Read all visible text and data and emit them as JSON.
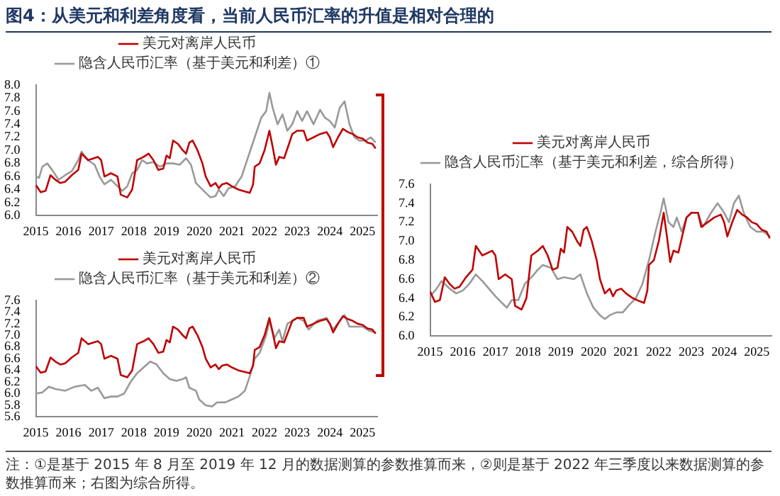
{
  "chart_data": [
    {
      "type": "line",
      "title": "图4：从美元和利差角度看，当前人民币汇率的升值是相对合理的",
      "marker": "none",
      "legend": "top",
      "xlim": [
        2015,
        2025.45
      ],
      "xticks": [
        2015,
        2016,
        2017,
        2018,
        2019,
        2020,
        2021,
        2022,
        2023,
        2024,
        2025
      ],
      "ylim": [
        6,
        8
      ],
      "yticks": [
        {
          "value": 6,
          "label": "6.0"
        },
        {
          "value": 6.2,
          "label": "6.2"
        },
        {
          "value": 6.4,
          "label": "6.4"
        },
        {
          "value": 6.6,
          "label": "6.6"
        },
        {
          "value": 6.8,
          "label": "6.8"
        },
        {
          "value": 7,
          "label": "7.0"
        },
        {
          "value": 7.2,
          "label": "7.2"
        },
        {
          "value": 7.4,
          "label": "7.4"
        },
        {
          "value": 7.6,
          "label": "7.6"
        },
        {
          "value": 7.8,
          "label": "7.8"
        },
        {
          "value": 8,
          "label": "8.0"
        }
      ],
      "series": [
        {
          "name": "美元对离岸人民币",
          "color": "#c00000",
          "x": [
            2015,
            2015.15,
            2015.3,
            2015.45,
            2015.6,
            2015.75,
            2015.9,
            2016.1,
            2016.3,
            2016.4,
            2016.6,
            2016.9,
            2017,
            2017.1,
            2017.3,
            2017.5,
            2017.6,
            2017.8,
            2017.95,
            2018.1,
            2018.3,
            2018.45,
            2018.6,
            2018.75,
            2018.9,
            2019,
            2019.1,
            2019.2,
            2019.35,
            2019.5,
            2019.6,
            2019.7,
            2019.8,
            2019.95,
            2020.1,
            2020.2,
            2020.35,
            2020.5,
            2020.6,
            2020.7,
            2020.85,
            2021,
            2021.2,
            2021.4,
            2021.55,
            2021.65,
            2021.7,
            2021.85,
            2022,
            2022.1,
            2022.15,
            2022.25,
            2022.35,
            2022.45,
            2022.6,
            2022.75,
            2022.85,
            2023,
            2023.2,
            2023.3,
            2023.5,
            2023.7,
            2023.9,
            2024,
            2024.1,
            2024.25,
            2024.4,
            2024.55,
            2024.7,
            2024.85,
            2025,
            2025.15,
            2025.3,
            2025.4
          ],
          "values": [
            6.47,
            6.36,
            6.38,
            6.62,
            6.55,
            6.5,
            6.52,
            6.62,
            6.7,
            6.95,
            6.85,
            6.9,
            6.85,
            6.6,
            6.65,
            6.6,
            6.32,
            6.28,
            6.4,
            6.85,
            6.9,
            6.95,
            6.85,
            6.7,
            6.72,
            6.92,
            6.88,
            7.15,
            7.1,
            7,
            6.95,
            7.12,
            7.15,
            7,
            6.8,
            6.6,
            6.45,
            6.5,
            6.42,
            6.48,
            6.5,
            6.45,
            6.4,
            6.37,
            6.35,
            6.48,
            6.75,
            6.8,
            7,
            7.2,
            7.3,
            7.05,
            6.78,
            6.9,
            6.88,
            7.1,
            7.25,
            7.3,
            7.3,
            7.15,
            7.2,
            7.25,
            7.28,
            7.2,
            7.05,
            7.2,
            7.33,
            7.28,
            7.25,
            7.2,
            7.18,
            7.12,
            7.1,
            7.03
          ]
        },
        {
          "name": "隐含人民币汇率（基于美元和利差）①",
          "color": "#999999",
          "x": [
            2015,
            2015.1,
            2015.2,
            2015.35,
            2015.5,
            2015.7,
            2015.9,
            2016.1,
            2016.3,
            2016.4,
            2016.6,
            2016.8,
            2016.95,
            2017.1,
            2017.3,
            2017.5,
            2017.65,
            2017.8,
            2017.95,
            2018.1,
            2018.25,
            2018.4,
            2018.6,
            2018.8,
            2019,
            2019.2,
            2019.4,
            2019.6,
            2019.75,
            2019.9,
            2020,
            2020.2,
            2020.35,
            2020.5,
            2020.6,
            2020.75,
            2020.9,
            2021.1,
            2021.3,
            2021.5,
            2021.7,
            2021.9,
            2022.05,
            2022.15,
            2022.25,
            2022.4,
            2022.55,
            2022.7,
            2022.85,
            2023,
            2023.15,
            2023.3,
            2023.5,
            2023.7,
            2023.85,
            2024,
            2024.15,
            2024.3,
            2024.45,
            2024.6,
            2024.75,
            2024.9,
            2025.1,
            2025.25,
            2025.4
          ],
          "values": [
            6.6,
            6.58,
            6.75,
            6.8,
            6.7,
            6.55,
            6.62,
            6.68,
            6.85,
            6.98,
            6.85,
            6.78,
            6.6,
            6.48,
            6.55,
            6.45,
            6.38,
            6.45,
            6.65,
            6.7,
            6.85,
            6.8,
            6.82,
            6.75,
            6.8,
            6.8,
            6.78,
            6.88,
            6.78,
            6.5,
            6.45,
            6.35,
            6.28,
            6.3,
            6.4,
            6.3,
            6.42,
            6.45,
            6.6,
            6.9,
            7.2,
            7.5,
            7.6,
            7.88,
            7.65,
            7.4,
            7.55,
            7.3,
            7.4,
            7.6,
            7.45,
            7.6,
            7.4,
            7.62,
            7.5,
            7.45,
            7.35,
            7.65,
            7.75,
            7.4,
            7.2,
            7.15,
            7.15,
            7.2,
            7.12
          ]
        }
      ]
    },
    {
      "type": "line",
      "marker": "none",
      "legend": "top",
      "xlim": [
        2015,
        2025.45
      ],
      "xticks": [
        2015,
        2016,
        2017,
        2018,
        2019,
        2020,
        2021,
        2022,
        2023,
        2024,
        2025
      ],
      "ylim": [
        5.6,
        7.6
      ],
      "yticks": [
        {
          "value": 5.6,
          "label": "5.6"
        },
        {
          "value": 5.8,
          "label": "5.8"
        },
        {
          "value": 6,
          "label": "6.0"
        },
        {
          "value": 6.2,
          "label": "6.2"
        },
        {
          "value": 6.4,
          "label": "6.4"
        },
        {
          "value": 6.6,
          "label": "6.6"
        },
        {
          "value": 6.8,
          "label": "6.8"
        },
        {
          "value": 7,
          "label": "7.0"
        },
        {
          "value": 7.2,
          "label": "7.2"
        },
        {
          "value": 7.4,
          "label": "7.4"
        },
        {
          "value": 7.6,
          "label": "7.6"
        }
      ],
      "series": [
        {
          "name": "美元对离岸人民币",
          "color": "#c00000",
          "x": [
            2015,
            2015.15,
            2015.3,
            2015.45,
            2015.6,
            2015.75,
            2015.9,
            2016.1,
            2016.3,
            2016.4,
            2016.6,
            2016.9,
            2017,
            2017.1,
            2017.3,
            2017.5,
            2017.6,
            2017.8,
            2017.95,
            2018.1,
            2018.3,
            2018.45,
            2018.6,
            2018.75,
            2018.9,
            2019,
            2019.1,
            2019.2,
            2019.35,
            2019.5,
            2019.6,
            2019.7,
            2019.8,
            2019.95,
            2020.1,
            2020.2,
            2020.35,
            2020.5,
            2020.6,
            2020.7,
            2020.85,
            2021,
            2021.2,
            2021.4,
            2021.55,
            2021.65,
            2021.7,
            2021.85,
            2022,
            2022.1,
            2022.15,
            2022.25,
            2022.35,
            2022.45,
            2022.6,
            2022.75,
            2022.85,
            2023,
            2023.2,
            2023.3,
            2023.5,
            2023.7,
            2023.9,
            2024,
            2024.1,
            2024.25,
            2024.4,
            2024.55,
            2024.7,
            2024.85,
            2025,
            2025.15,
            2025.3,
            2025.4
          ],
          "values": [
            6.47,
            6.36,
            6.38,
            6.62,
            6.55,
            6.5,
            6.52,
            6.62,
            6.7,
            6.95,
            6.85,
            6.9,
            6.85,
            6.6,
            6.65,
            6.6,
            6.32,
            6.28,
            6.4,
            6.85,
            6.9,
            6.95,
            6.85,
            6.7,
            6.72,
            6.92,
            6.88,
            7.15,
            7.1,
            7,
            6.95,
            7.12,
            7.15,
            7,
            6.8,
            6.6,
            6.45,
            6.5,
            6.42,
            6.48,
            6.5,
            6.45,
            6.4,
            6.37,
            6.35,
            6.48,
            6.75,
            6.8,
            7,
            7.2,
            7.3,
            7.05,
            6.78,
            6.9,
            6.88,
            7.1,
            7.25,
            7.3,
            7.3,
            7.15,
            7.2,
            7.25,
            7.28,
            7.2,
            7.05,
            7.2,
            7.33,
            7.28,
            7.25,
            7.2,
            7.18,
            7.12,
            7.1,
            7.03
          ]
        },
        {
          "name": "隐含人民币汇率（基于美元和利差）②",
          "color": "#999999",
          "x": [
            2015,
            2015.2,
            2015.4,
            2015.6,
            2015.9,
            2016.2,
            2016.5,
            2016.7,
            2016.9,
            2017.1,
            2017.3,
            2017.5,
            2017.7,
            2017.9,
            2018.1,
            2018.3,
            2018.5,
            2018.7,
            2018.9,
            2019.1,
            2019.3,
            2019.5,
            2019.6,
            2019.7,
            2019.9,
            2020,
            2020.2,
            2020.4,
            2020.55,
            2020.8,
            2021,
            2021.2,
            2021.4,
            2021.55,
            2021.7,
            2021.85,
            2022.05,
            2022.15,
            2022.3,
            2022.45,
            2022.55,
            2022.7,
            2022.85,
            2023,
            2023.2,
            2023.35,
            2023.6,
            2023.9,
            2024.1,
            2024.3,
            2024.45,
            2024.6,
            2024.8,
            2025,
            2025.2,
            2025.4
          ],
          "values": [
            6,
            6.02,
            6.12,
            6.08,
            6.05,
            6.12,
            6.15,
            6.05,
            6.1,
            5.92,
            5.95,
            5.95,
            6,
            6.2,
            6.35,
            6.45,
            6.55,
            6.5,
            6.35,
            6.25,
            6.22,
            6.25,
            6.28,
            6.1,
            6.05,
            5.9,
            5.8,
            5.78,
            5.85,
            5.85,
            5.9,
            5.95,
            6.05,
            6.3,
            6.6,
            6.7,
            7,
            7.25,
            6.95,
            7.1,
            6.9,
            7.2,
            7.25,
            7.3,
            7.25,
            7.1,
            7.25,
            7.3,
            7.1,
            7.25,
            7.35,
            7.15,
            7.15,
            7.15,
            7.08,
            7.05
          ]
        }
      ]
    },
    {
      "type": "line",
      "marker": "none",
      "legend": "top",
      "annotations": [
        "注：①是基于 2015 年 8 月至 2019 年 12 月的数据测算的参数推算而来，②则是基于 2022 年三季度以来数据测算的参数推算而来；右图为综合所得。"
      ],
      "xlim": [
        2015,
        2025.45
      ],
      "xticks": [
        2015,
        2016,
        2017,
        2018,
        2019,
        2020,
        2021,
        2022,
        2023,
        2024,
        2025
      ],
      "ylim": [
        6,
        7.6
      ],
      "yticks": [
        {
          "value": 6,
          "label": "6.0"
        },
        {
          "value": 6.2,
          "label": "6.2"
        },
        {
          "value": 6.4,
          "label": "6.4"
        },
        {
          "value": 6.6,
          "label": "6.6"
        },
        {
          "value": 6.8,
          "label": "6.8"
        },
        {
          "value": 7,
          "label": "7.0"
        },
        {
          "value": 7.2,
          "label": "7.2"
        },
        {
          "value": 7.4,
          "label": "7.4"
        },
        {
          "value": 7.6,
          "label": "7.6"
        }
      ],
      "series": [
        {
          "name": "美元对离岸人民币",
          "color": "#c00000",
          "x": [
            2015,
            2015.15,
            2015.3,
            2015.45,
            2015.6,
            2015.75,
            2015.9,
            2016.1,
            2016.3,
            2016.4,
            2016.6,
            2016.9,
            2017,
            2017.1,
            2017.3,
            2017.5,
            2017.6,
            2017.8,
            2017.95,
            2018.1,
            2018.3,
            2018.45,
            2018.6,
            2018.75,
            2018.9,
            2019,
            2019.1,
            2019.2,
            2019.35,
            2019.5,
            2019.6,
            2019.7,
            2019.8,
            2019.95,
            2020.1,
            2020.2,
            2020.35,
            2020.5,
            2020.6,
            2020.7,
            2020.85,
            2021,
            2021.2,
            2021.4,
            2021.55,
            2021.65,
            2021.7,
            2021.85,
            2022,
            2022.1,
            2022.15,
            2022.25,
            2022.35,
            2022.45,
            2022.6,
            2022.75,
            2022.85,
            2023,
            2023.2,
            2023.3,
            2023.5,
            2023.7,
            2023.9,
            2024,
            2024.1,
            2024.25,
            2024.4,
            2024.55,
            2024.7,
            2024.85,
            2025,
            2025.15,
            2025.3,
            2025.4
          ],
          "values": [
            6.47,
            6.36,
            6.38,
            6.62,
            6.55,
            6.5,
            6.52,
            6.62,
            6.7,
            6.95,
            6.85,
            6.9,
            6.85,
            6.6,
            6.65,
            6.6,
            6.32,
            6.28,
            6.4,
            6.85,
            6.9,
            6.95,
            6.85,
            6.7,
            6.72,
            6.92,
            6.88,
            7.15,
            7.1,
            7,
            6.95,
            7.12,
            7.15,
            7,
            6.8,
            6.6,
            6.45,
            6.5,
            6.42,
            6.48,
            6.5,
            6.45,
            6.4,
            6.37,
            6.35,
            6.48,
            6.75,
            6.8,
            7,
            7.2,
            7.3,
            7.05,
            6.78,
            6.9,
            6.88,
            7.1,
            7.25,
            7.3,
            7.3,
            7.15,
            7.2,
            7.25,
            7.28,
            7.2,
            7.05,
            7.2,
            7.33,
            7.28,
            7.25,
            7.2,
            7.18,
            7.12,
            7.1,
            7.03
          ]
        },
        {
          "name": "隐含人民币汇率（基于美元和利差，综合所得）",
          "color": "#999999",
          "x": [
            2015,
            2015.2,
            2015.35,
            2015.6,
            2015.8,
            2016,
            2016.2,
            2016.4,
            2016.6,
            2016.8,
            2017,
            2017.2,
            2017.35,
            2017.5,
            2017.7,
            2017.9,
            2018.1,
            2018.3,
            2018.45,
            2018.7,
            2018.9,
            2019.1,
            2019.4,
            2019.6,
            2019.8,
            2020,
            2020.2,
            2020.35,
            2020.5,
            2020.7,
            2020.9,
            2021.1,
            2021.3,
            2021.5,
            2021.7,
            2021.9,
            2022.05,
            2022.15,
            2022.3,
            2022.45,
            2022.55,
            2022.7,
            2022.85,
            2023,
            2023.2,
            2023.35,
            2023.6,
            2023.8,
            2024,
            2024.15,
            2024.3,
            2024.45,
            2024.6,
            2024.8,
            2025,
            2025.2,
            2025.4
          ],
          "values": [
            6.42,
            6.5,
            6.58,
            6.5,
            6.45,
            6.48,
            6.55,
            6.65,
            6.58,
            6.5,
            6.42,
            6.35,
            6.3,
            6.38,
            6.38,
            6.55,
            6.62,
            6.7,
            6.75,
            6.72,
            6.6,
            6.62,
            6.6,
            6.65,
            6.45,
            6.3,
            6.22,
            6.18,
            6.22,
            6.25,
            6.25,
            6.33,
            6.4,
            6.55,
            6.8,
            7.1,
            7.3,
            7.45,
            7.2,
            7.15,
            7.25,
            7.1,
            7.25,
            7.3,
            7.3,
            7.15,
            7.3,
            7.4,
            7.3,
            7.2,
            7.4,
            7.48,
            7.3,
            7.15,
            7.1,
            7.1,
            7.05
          ]
        }
      ]
    }
  ]
}
